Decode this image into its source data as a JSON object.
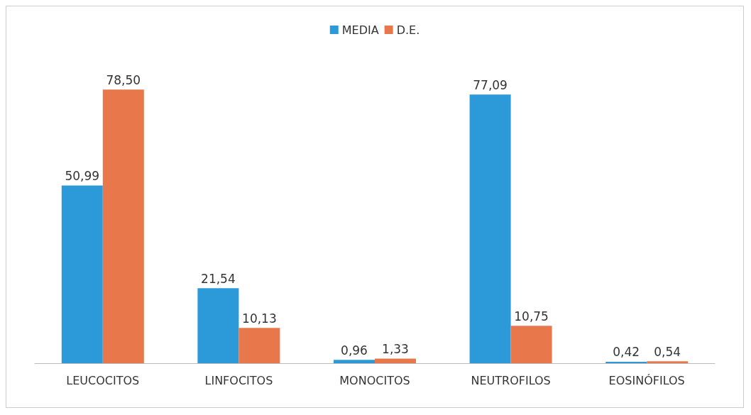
{
  "chart_data": {
    "type": "bar",
    "categories": [
      "LEUCOCITOS",
      "LINFOCITOS",
      "MONOCITOS",
      "NEUTROFILOS",
      "EOSINÓFILOS"
    ],
    "series": [
      {
        "name": "MEDIA",
        "color": "#2c9ad8",
        "values": [
          50.99,
          21.54,
          0.96,
          77.09,
          0.42
        ],
        "value_labels": [
          "50,99",
          "21,54",
          "0,96",
          "77,09",
          "0,42"
        ]
      },
      {
        "name": "D.E.",
        "color": "#e8774c",
        "values": [
          78.5,
          10.13,
          1.33,
          10.75,
          0.54
        ],
        "value_labels": [
          "78,50",
          "10,13",
          "1,33",
          "10,75",
          "0,54"
        ]
      }
    ],
    "legend": "top"
  }
}
